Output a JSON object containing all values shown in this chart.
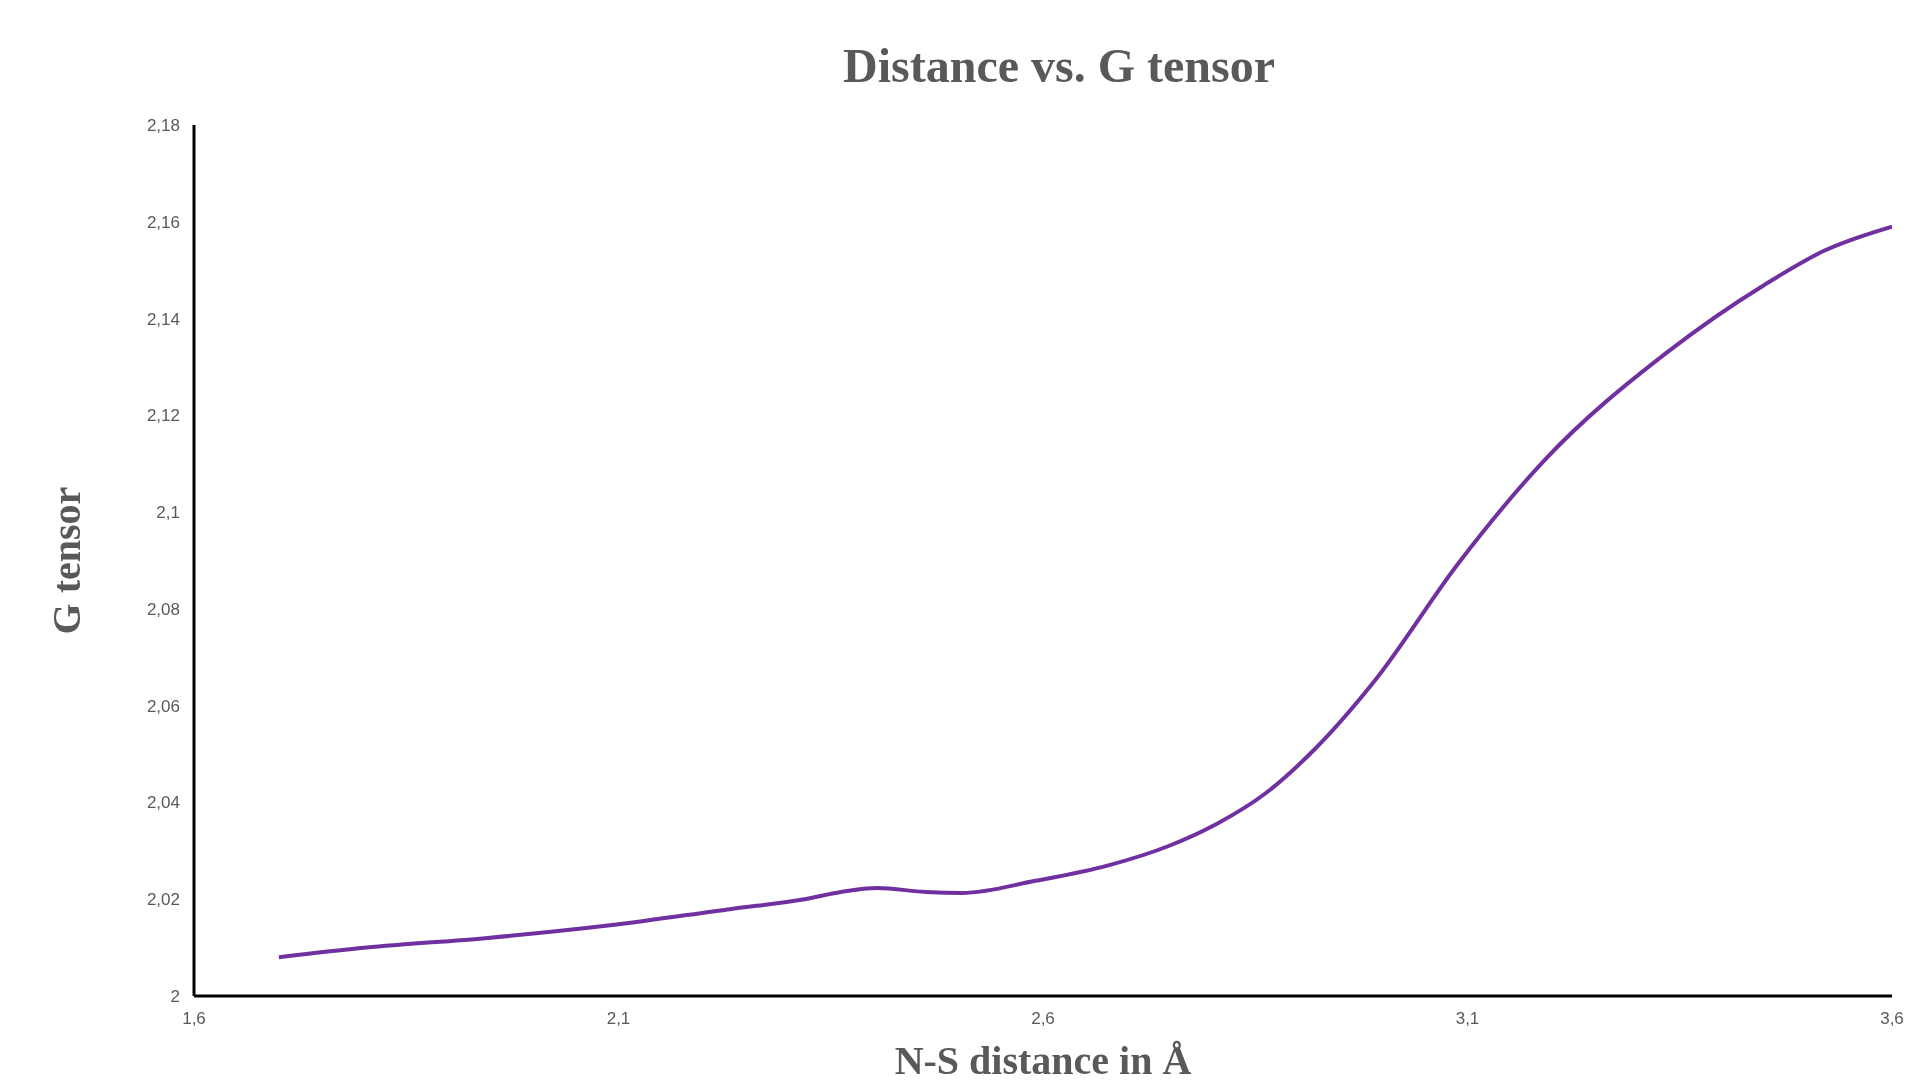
{
  "chart_data": {
    "type": "line",
    "title": "Distance vs. G tensor",
    "xlabel": "N-S distance in Å",
    "ylabel": "G tensor",
    "x": [
      1.7,
      1.803,
      1.946,
      2.09,
      2.233,
      2.319,
      2.362,
      2.405,
      2.462,
      2.505,
      2.591,
      2.677,
      2.748,
      2.805,
      2.863,
      2.92,
      2.99,
      3.09,
      3.19,
      3.335,
      3.45,
      3.52,
      3.6
    ],
    "series": [
      {
        "color": "#7030a0",
        "values": [
          2.008,
          2.01,
          2.012,
          2.0146,
          2.018,
          2.02,
          2.0215,
          2.0223,
          2.0215,
          2.0213,
          2.0238,
          2.027,
          2.031,
          2.0356,
          2.042,
          2.051,
          2.065,
          2.0896,
          2.1106,
          2.133,
          2.147,
          2.154,
          2.159
        ]
      }
    ],
    "xlim": [
      1.6,
      3.6
    ],
    "xticks": [
      {
        "value": 1.6,
        "label": "1,6"
      },
      {
        "value": 2.1,
        "label": "2,1"
      },
      {
        "value": 2.6,
        "label": "2,6"
      },
      {
        "value": 3.1,
        "label": "3,1"
      },
      {
        "value": 3.6,
        "label": "3,6"
      }
    ],
    "ylim": [
      2,
      2.18
    ],
    "yticks": [
      2,
      {
        "value": 2.02,
        "label": "2,02"
      },
      {
        "value": 2.04,
        "label": "2,04"
      },
      {
        "value": 2.06,
        "label": "2,06"
      },
      {
        "value": 2.08,
        "label": "2,08"
      },
      {
        "value": 2.1,
        "label": "2,1"
      },
      {
        "value": 2.12,
        "label": "2,12"
      },
      {
        "value": 2.14,
        "label": "2,14"
      },
      {
        "value": 2.16,
        "label": "2,16"
      },
      {
        "value": 2.18,
        "label": "2,18"
      }
    ],
    "grid": false,
    "legend": false,
    "marker": "none",
    "line_style": "solid"
  }
}
